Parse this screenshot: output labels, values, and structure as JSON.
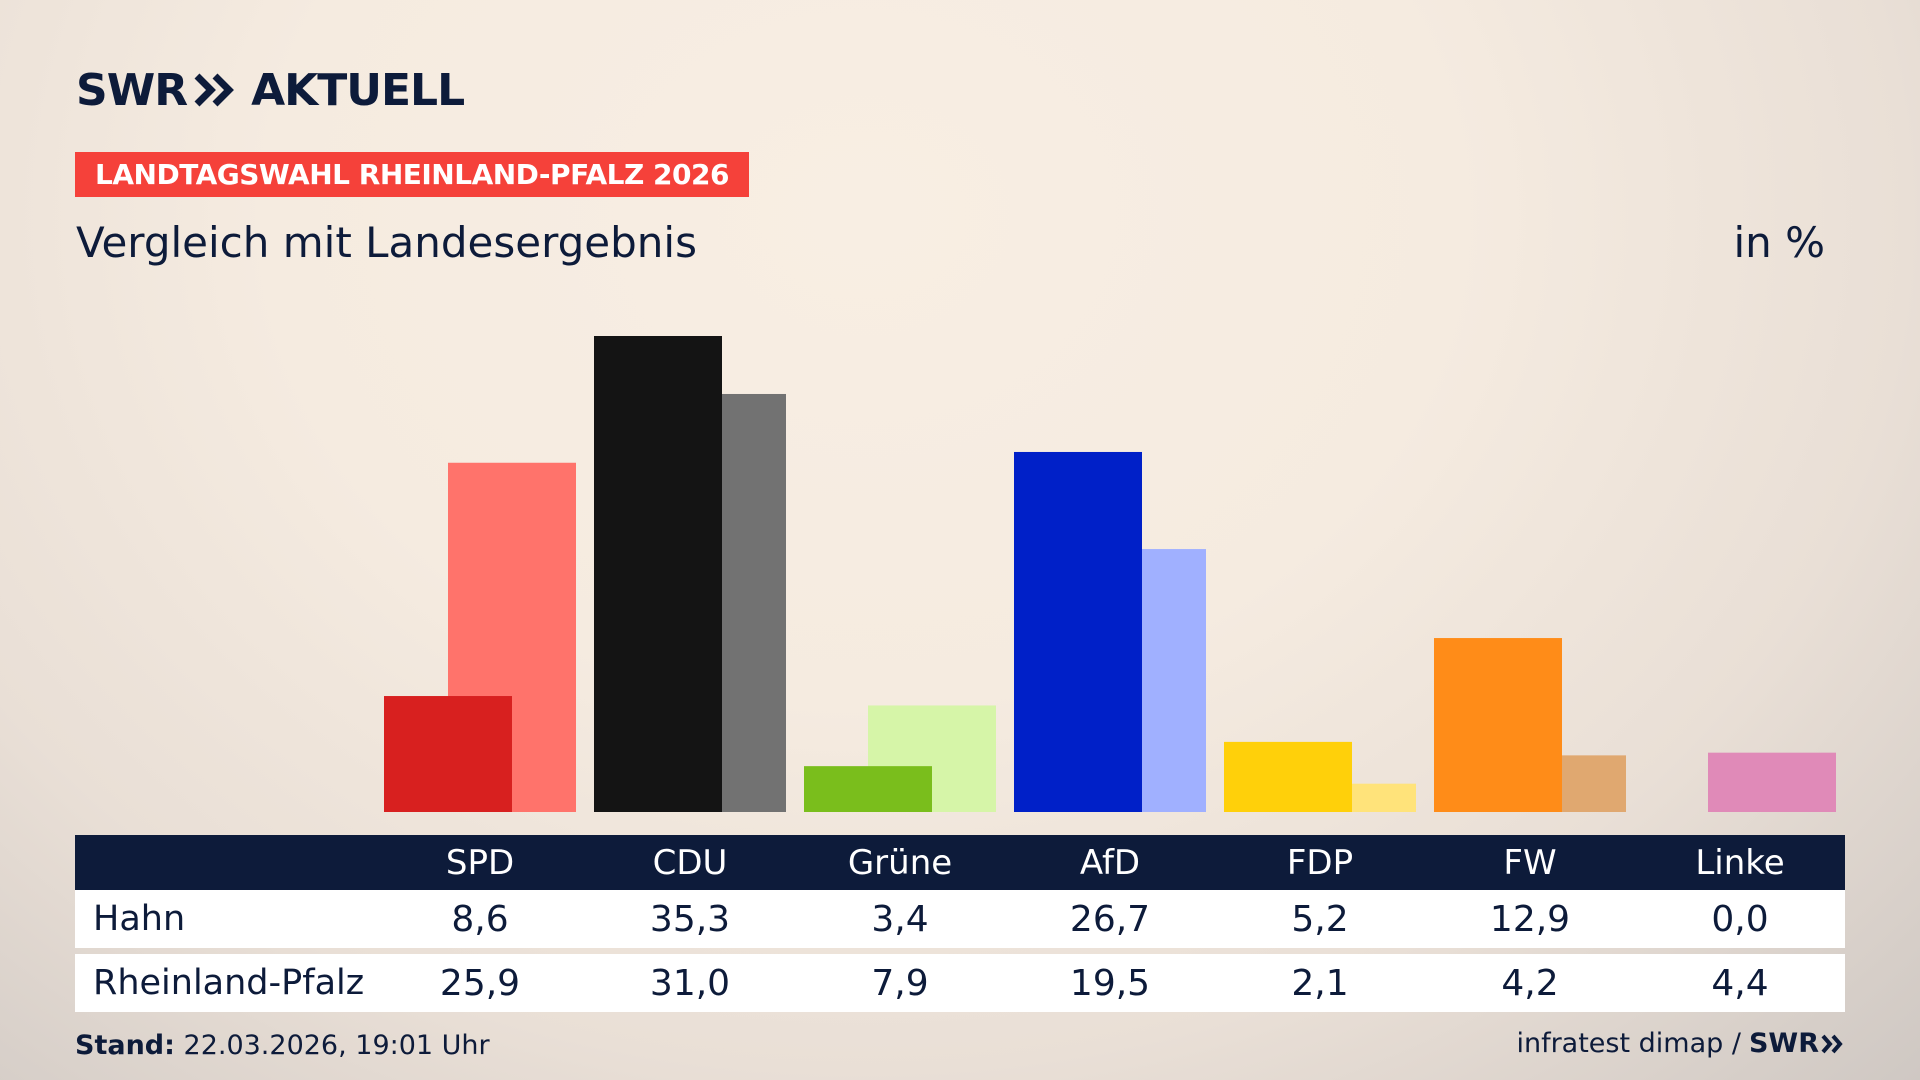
{
  "brand": {
    "logo_left": "SWR",
    "logo_right": "AKTUELL"
  },
  "kicker": "LANDTAGSWAHL RHEINLAND-PFALZ 2026",
  "subtitle": "Vergleich mit Landesergebnis",
  "unit": "in %",
  "chart_data": {
    "type": "bar",
    "categories": [
      "SPD",
      "CDU",
      "Grüne",
      "AfD",
      "FDP",
      "FW",
      "Linke"
    ],
    "series": [
      {
        "name": "Hahn",
        "values": [
          8.6,
          35.3,
          3.4,
          26.7,
          5.2,
          12.9,
          0.0
        ]
      },
      {
        "name": "Rheinland-Pfalz",
        "values": [
          25.9,
          31.0,
          7.9,
          19.5,
          2.1,
          4.2,
          4.4
        ]
      }
    ],
    "display_values": {
      "Hahn": [
        "8,6",
        "35,3",
        "3,4",
        "26,7",
        "5,2",
        "12,9",
        "0,0"
      ],
      "Rheinland-Pfalz": [
        "25,9",
        "31,0",
        "7,9",
        "19,5",
        "2,1",
        "4,2",
        "4,4"
      ]
    },
    "colors_primary": [
      "#d8201f",
      "#141414",
      "#7abe1c",
      "#0020c8",
      "#ffd00a",
      "#ff8c18",
      "#d83a8c"
    ],
    "colors_secondary": [
      "#ff736b",
      "#727272",
      "#d6f5a8",
      "#a0b0ff",
      "#ffe37a",
      "#e0a870",
      "#e08ab8"
    ],
    "ylim": [
      0,
      35.3
    ],
    "grid": false,
    "legend": "table-below"
  },
  "footer": {
    "stand_label": "Stand:",
    "stand_value": "22.03.2026, 19:01 Uhr",
    "source": "infratest dimap /",
    "source_brand": "SWR"
  }
}
